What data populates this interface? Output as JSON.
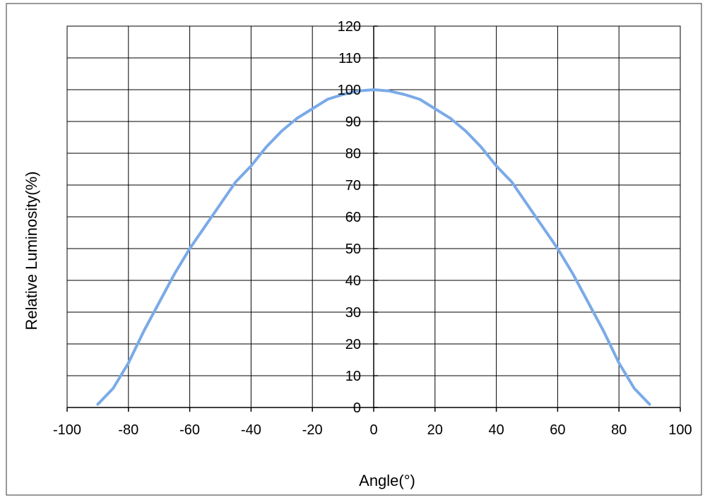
{
  "chart_data": {
    "type": "line",
    "xlabel": "Angle(°)",
    "ylabel": "Relative Luminosity(%)",
    "xlim": [
      -100,
      100
    ],
    "ylim": [
      0,
      120
    ],
    "x_ticks": [
      -100,
      -80,
      -60,
      -40,
      -20,
      0,
      20,
      40,
      60,
      80,
      100
    ],
    "y_ticks": [
      0,
      10,
      20,
      30,
      40,
      50,
      60,
      70,
      80,
      90,
      100,
      110,
      120
    ],
    "x_tick_labels": [
      "-100",
      "-80",
      "-60",
      "-40",
      "-20",
      "0",
      "20",
      "40",
      "60",
      "80",
      "100"
    ],
    "y_tick_labels": [
      "0",
      "10",
      "20",
      "30",
      "40",
      "50",
      "60",
      "70",
      "80",
      "90",
      "100",
      "110",
      "120"
    ],
    "grid": true,
    "series": [
      {
        "color": "#7aaae8",
        "x": [
          -90,
          -85,
          -80,
          -75,
          -70,
          -65,
          -60,
          -55,
          -50,
          -45,
          -40,
          -35,
          -30,
          -25,
          -20,
          -15,
          -10,
          -5,
          0,
          5,
          10,
          15,
          20,
          25,
          30,
          35,
          40,
          45,
          50,
          55,
          60,
          65,
          70,
          75,
          80,
          85,
          90
        ],
        "y": [
          1,
          6,
          14,
          24,
          33,
          42,
          50,
          57,
          64,
          71,
          76,
          82,
          87,
          91,
          94,
          97,
          98.5,
          99.6,
          100,
          99.6,
          98.5,
          97,
          94,
          91,
          87,
          82,
          76,
          71,
          64,
          57,
          50,
          42,
          33,
          24,
          14,
          6,
          1
        ]
      }
    ]
  }
}
